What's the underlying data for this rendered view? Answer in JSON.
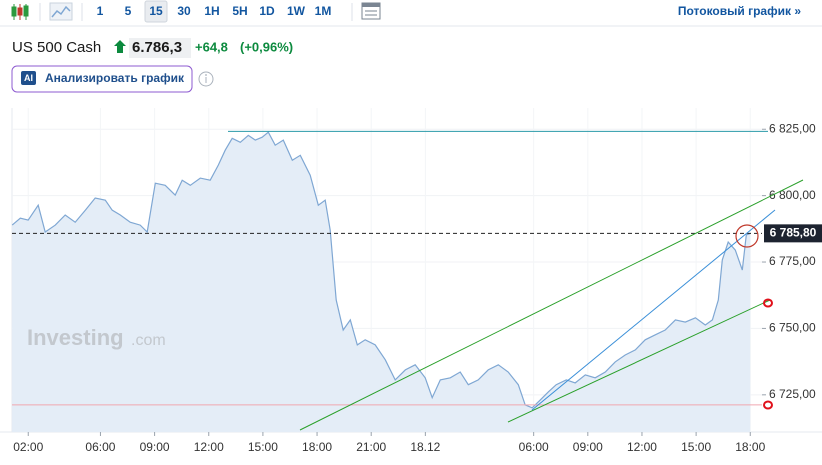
{
  "toolbar": {
    "intervals": [
      "1",
      "5",
      "15",
      "30",
      "1H",
      "5H",
      "1D",
      "1W",
      "1M"
    ],
    "active_interval": 2,
    "stream_link": "Потоковый график »"
  },
  "header": {
    "instrument": "US 500 Cash",
    "price": "6.786,3",
    "change": "+64,8",
    "change_percent": "(+0,96%)"
  },
  "ai_badge": "AI",
  "ai_button": "Анализировать график",
  "watermark": {
    "brand": "Investing",
    "suffix": ".com"
  },
  "chart_data": {
    "type": "line",
    "color": "#7fa7d3",
    "area_color": "#e4edf7",
    "x": [
      1.11,
      1.56,
      2,
      2.55,
      2.94,
      3.5,
      4.05,
      4.6,
      5.16,
      5.71,
      6.27,
      6.65,
      7.1,
      7.65,
      8.2,
      8.59,
      9.04,
      9.59,
      10.14,
      10.53,
      10.98,
      11.53,
      12.08,
      12.53,
      12.91,
      13.3,
      13.75,
      14.19,
      14.58,
      14.96,
      15.3,
      15.68,
      16.13,
      16.63,
      17.07,
      17.62,
      18.07,
      18.45,
      18.73,
      19.06,
      19.45,
      19.84,
      20.23,
      20.67,
      21.22,
      21.78,
      22.33,
      22.89,
      23.44,
      23.99,
      24.38,
      24.83,
      25.38,
      25.93,
      26.38,
      26.93,
      27.48,
      28.04,
      28.59,
      29.15,
      29.53,
      29.92,
      30.37,
      30.81,
      31.25,
      31.81,
      32.3,
      32.86,
      33.41,
      33.97,
      34.52,
      35.07,
      35.63,
      36.18,
      36.74,
      37.29,
      37.85,
      38.4,
      38.96,
      39.51,
      39.9,
      40.23,
      40.45,
      40.78,
      41.17,
      41.56,
      41.78,
      42
    ],
    "values": [
      6788.9,
      6791.5,
      6790.8,
      6796.4,
      6786.3,
      6788.9,
      6792.7,
      6790.0,
      6794.5,
      6799.1,
      6798.3,
      6794.5,
      6792.7,
      6790.0,
      6788.9,
      6786.3,
      6804.7,
      6803.9,
      6800.2,
      6805.8,
      6803.9,
      6806.6,
      6805.8,
      6811.5,
      6817.1,
      6821.6,
      6820.1,
      6822.7,
      6820.9,
      6822.0,
      6823.9,
      6819.0,
      6820.9,
      6813.3,
      6815.2,
      6807.7,
      6796.4,
      6798.3,
      6787.0,
      6760.7,
      6749.4,
      6753.2,
      6743.8,
      6745.7,
      6743.8,
      6738.2,
      6730.6,
      6734.4,
      6736.3,
      6731.4,
      6723.9,
      6730.6,
      6731.4,
      6733.6,
      6728.8,
      6730.6,
      6734.4,
      6736.3,
      6733.6,
      6728.8,
      6721.2,
      6720.1,
      6723.1,
      6726.1,
      6728.8,
      6730.6,
      6729.5,
      6732.5,
      6731.4,
      6733.6,
      6737.4,
      6740.0,
      6741.9,
      6745.7,
      6747.6,
      6749.4,
      6753.2,
      6752.4,
      6754.0,
      6751.3,
      6753.2,
      6760.7,
      6775.8,
      6782.5,
      6779.5,
      6772.0,
      6785.2,
      6785.8
    ],
    "xlim": [
      1.1,
      42.65
    ],
    "xticks": [
      {
        "value": 2,
        "label": "02:00"
      },
      {
        "value": 6,
        "label": "06:00"
      },
      {
        "value": 9,
        "label": "09:00"
      },
      {
        "value": 12,
        "label": "12:00"
      },
      {
        "value": 15,
        "label": "15:00"
      },
      {
        "value": 18,
        "label": "18:00"
      },
      {
        "value": 21,
        "label": "21:00"
      },
      {
        "value": 24,
        "label": "18.12"
      },
      {
        "value": 30,
        "label": "06:00"
      },
      {
        "value": 33,
        "label": "09:00"
      },
      {
        "value": 36,
        "label": "12:00"
      },
      {
        "value": 39,
        "label": "15:00"
      },
      {
        "value": 42,
        "label": "18:00"
      }
    ],
    "ylim": [
      6711,
      6833
    ],
    "yticks": [
      {
        "value": 6725,
        "label": "6 725,00"
      },
      {
        "value": 6750,
        "label": "6 750,00"
      },
      {
        "value": 6775,
        "label": "6 775,00"
      },
      {
        "value": 6800,
        "label": "6 800,00"
      },
      {
        "value": 6825,
        "label": "6 825,00"
      }
    ],
    "current_price": {
      "value": 6785.8,
      "label": "6 785,80"
    },
    "resistance_level": 6824.2,
    "support_level": 6721.2,
    "grid": true
  }
}
